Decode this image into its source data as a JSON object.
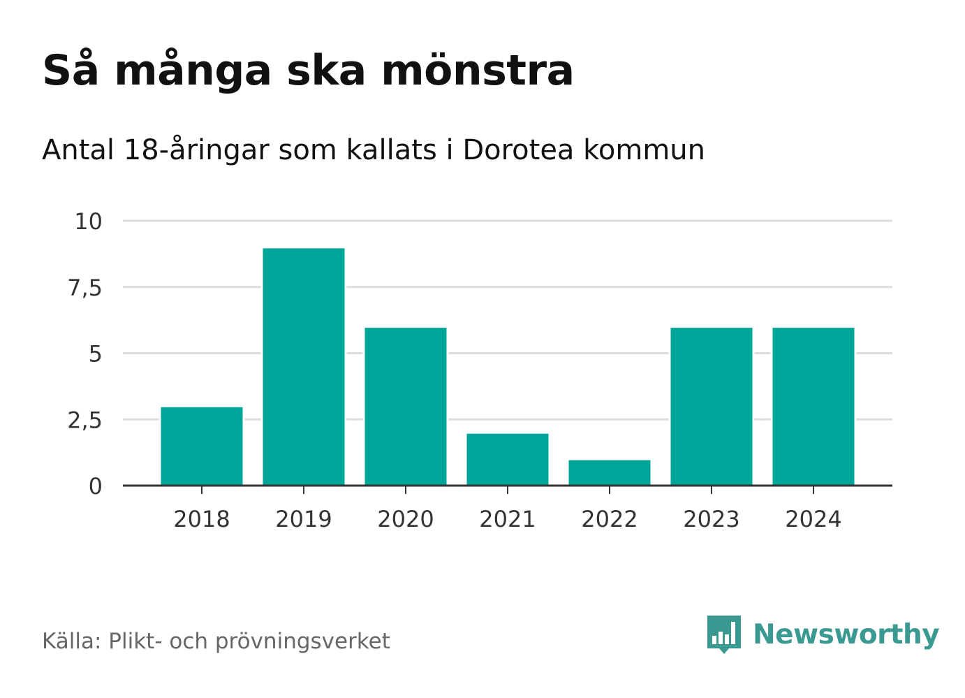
{
  "header": {
    "title": "Så många ska mönstra",
    "subtitle": "Antal 18-åringar som kallats i Dorotea kommun"
  },
  "footer": {
    "source": "Källa: Plikt- och prövningsverket",
    "brand": "Newsworthy",
    "brand_icon": "bar-chart-speech-bubble-icon"
  },
  "colors": {
    "bar": "#00a59a",
    "grid": "#dddddd",
    "axis": "#333333",
    "tick_text": "#333333",
    "brand": "#3a9990"
  },
  "chart_data": {
    "type": "bar",
    "categories": [
      "2018",
      "2019",
      "2020",
      "2021",
      "2022",
      "2023",
      "2024"
    ],
    "values": [
      3,
      9,
      6,
      2,
      1,
      6,
      6
    ],
    "title": "Så många ska mönstra",
    "subtitle": "Antal 18-åringar som kallats i Dorotea kommun",
    "xlabel": "",
    "ylabel": "",
    "ylim": [
      0,
      10
    ],
    "yticks": [
      0,
      2.5,
      5,
      7.5,
      10
    ],
    "ytick_labels": [
      "0",
      "2,5",
      "5",
      "7,5",
      "10"
    ],
    "grid": true,
    "legend": "none"
  }
}
